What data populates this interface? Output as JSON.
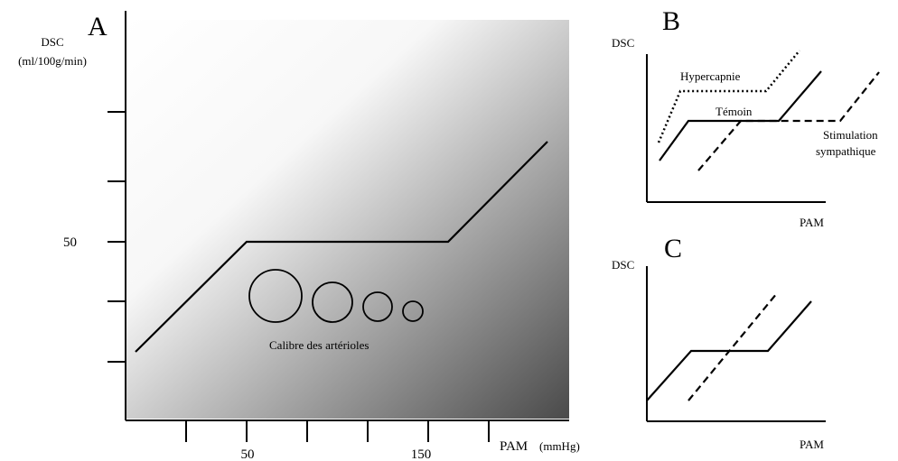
{
  "panel_a": {
    "letter": "A",
    "y_axis_title": "DSC",
    "y_axis_unit": "(ml/100g/min)",
    "y_tick_label": "50",
    "x_tick_labels": [
      "50",
      "150"
    ],
    "x_axis_title": "PAM",
    "x_axis_unit": "(mmHg)",
    "arterioles_label": "Calibre des artérioles"
  },
  "panel_b": {
    "letter": "B",
    "y_axis_title": "DSC",
    "x_axis_title": "PAM",
    "curve_labels": {
      "hypercapnie": "Hypercapnie",
      "temoin": "Témoin",
      "stimulation_line1": "Stimulation",
      "stimulation_line2": "sympathique"
    }
  },
  "panel_c": {
    "letter": "C",
    "y_axis_title": "DSC",
    "x_axis_title": "PAM"
  },
  "colors": {
    "gradient_light": "#ffffff",
    "gradient_dark": "#4a4a4a",
    "line": "#000000"
  }
}
